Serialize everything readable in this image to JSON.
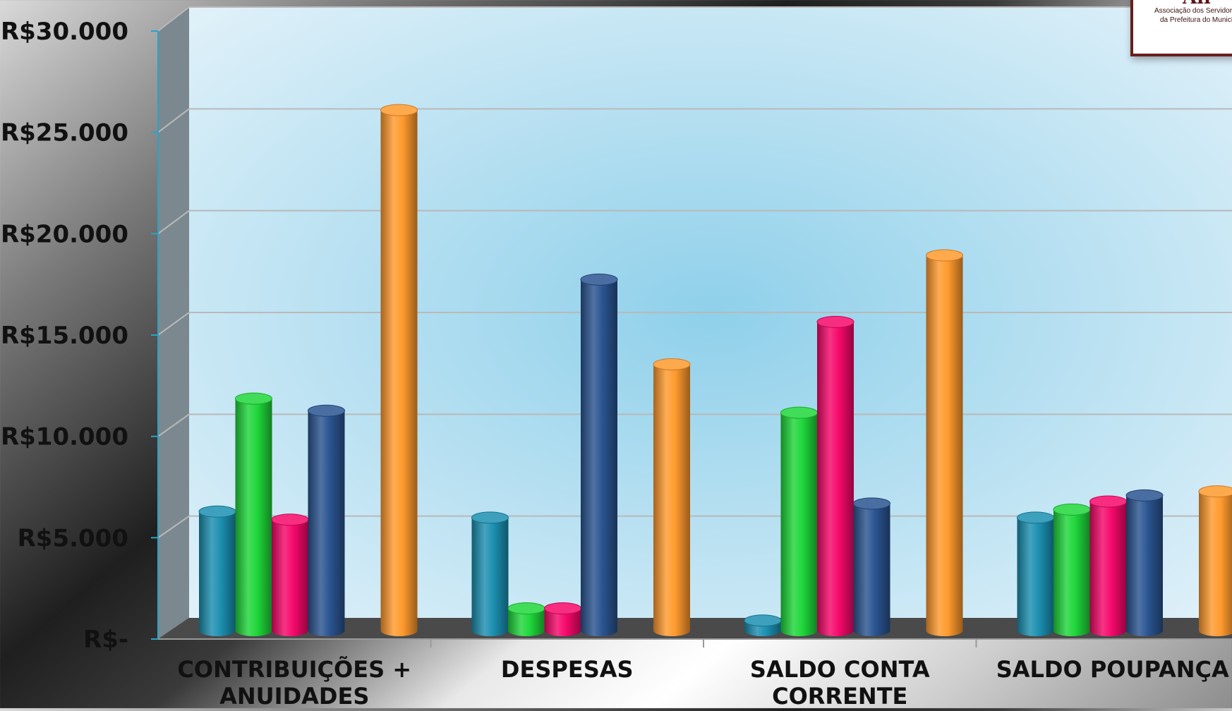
{
  "logo": {
    "line1": "Associação dos Servidores da",
    "line2": "da Prefeitura do Município"
  },
  "chart_data": {
    "type": "bar",
    "categories": [
      [
        "CONTRIBUIÇÕES +",
        "ANUIDADES"
      ],
      [
        "DESPESAS"
      ],
      [
        "SALDO CONTA",
        "CORRENTE"
      ],
      [
        "SALDO POUPANÇA"
      ]
    ],
    "series": [
      {
        "color": "#1b8fb0",
        "values": [
          5900,
          5600,
          500,
          5600
        ]
      },
      {
        "color": "#1fd63a",
        "values": [
          11500,
          1100,
          10800,
          6000
        ]
      },
      {
        "color": "#f5086a",
        "values": [
          5500,
          1100,
          15300,
          6400
        ]
      },
      {
        "color": "#2a5490",
        "values": [
          10900,
          17400,
          6300,
          6700
        ]
      },
      {
        "color": "#ff9a2e",
        "values": [
          25800,
          13200,
          18600,
          6900
        ]
      }
    ],
    "yticks": [
      "R$-",
      "R$5.000",
      "R$10.000",
      "R$15.000",
      "R$20.000",
      "R$25.000",
      "R$30.000"
    ],
    "ylim": [
      0,
      30000
    ],
    "grid": true,
    "legend": "none",
    "colors": {
      "plot_center": "#8fd0ea",
      "plot_edge": "#e6f3fa",
      "side_wall": "#7b8890",
      "floor": "#4a4a4a",
      "gridline": "#b9b9b9",
      "axis": "#2aa3c8"
    }
  }
}
